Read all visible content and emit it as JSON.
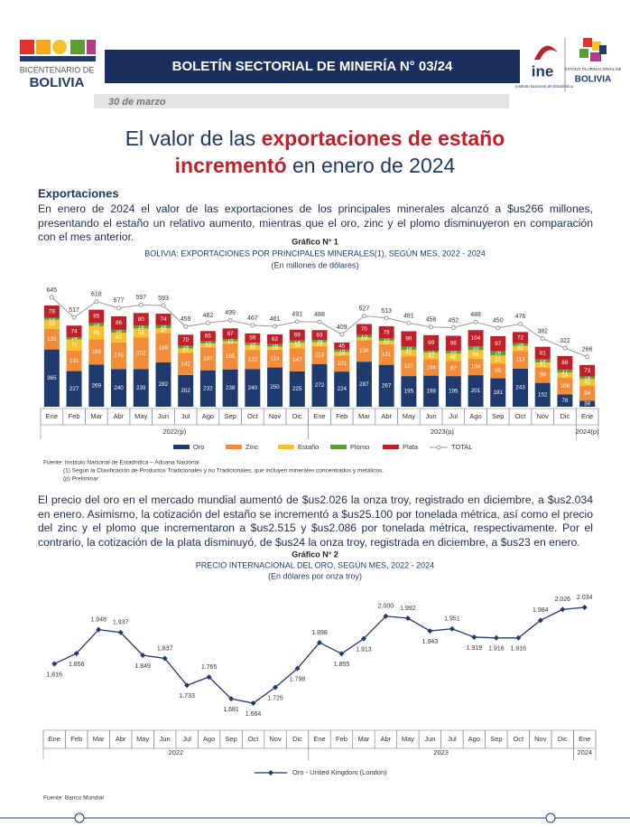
{
  "header": {
    "logo_left_top": "BICENTENARIO DE",
    "logo_left_bottom": "BOLIVIA",
    "title": "BOLETÍN SECTORIAL DE MINERÍA N° 03/24",
    "ine": "ine",
    "ine_caption": "Instituto Nacional de Estadística",
    "logo_right_top": "ESTADO PLURINACIONAL DE",
    "logo_right_bottom": "BOLIVIA",
    "date": "30 de marzo"
  },
  "headline": {
    "line1_plain": "El valor de las ",
    "line1_bold": "exportaciones de estaño",
    "line2_bold": "incrementó",
    "line2_plain": " en enero de 2024"
  },
  "section": "Exportaciones",
  "paragraphs": [
    "En enero de 2024 el valor de las exportaciones de los principales minerales alcanzó a $us266 millones, presentando el estaño un relativo aumento, mientras que el oro, zinc y el plomo disminuyeron en comparación con el mes anterior.",
    "El precio del oro en el mercado mundial aumentó de $us2.026 la onza troy, registrado en diciembre, a $us2.034 en enero. Asimismo, la cotización del estaño se incrementó a $us25.100 por tonelada métrica, así como el precio del zinc y el plomo que incrementaron a $us2.515 y $us2.086 por tonelada métrica, respectivamente. Por el contrario, la cotización de la plata disminuyó, de $us24 la onza troy, registrada en diciembre, a $us23 en enero."
  ],
  "chart_data": [
    {
      "type": "stacked_bar",
      "label": "Gráfico N° 1",
      "title": "BOLIVIA: EXPORTACIONES POR PRINCIPALES MINERALES(1), SEGÚN MES, 2022 - 2024",
      "subtitle": "(En millones de dólares)",
      "category_groups": [
        {
          "label": "2022(p)",
          "categories": [
            "Ene",
            "Feb",
            "Mar",
            "Abr",
            "May",
            "Jun",
            "Jul",
            "Ago",
            "Sep",
            "Oct",
            "Nov",
            "Dic"
          ]
        },
        {
          "label": "2023(p)",
          "categories": [
            "Ene",
            "Feb",
            "Mar",
            "Abr",
            "May",
            "Jun",
            "Jul",
            "Ago",
            "Sep",
            "Oct",
            "Nov",
            "Dic"
          ]
        },
        {
          "label": "2024(p)",
          "categories": [
            "Ene"
          ]
        }
      ],
      "series": [
        {
          "name": "Oro",
          "color": "#1f3a6e",
          "values": [
            365,
            227,
            269,
            240,
            239,
            282,
            202,
            232,
            238,
            240,
            250,
            225,
            272,
            224,
            287,
            267,
            195,
            198,
            195,
            201,
            181,
            243,
            152,
            78,
            38
          ]
        },
        {
          "name": "Zinc",
          "color": "#f28c38",
          "values": [
            131,
            131,
            160,
            170,
            202,
            189,
            142,
            147,
            165,
            122,
            114,
            147,
            113,
            101,
            136,
            131,
            127,
            104,
            97,
            104,
            95,
            113,
            99,
            106,
            94
          ]
        },
        {
          "name": "Estaño",
          "color": "#f6c22b",
          "values": [
            58,
            71,
            85,
            62,
            58,
            30,
            27,
            23,
            14,
            30,
            19,
            36,
            26,
            24,
            19,
            22,
            41,
            42,
            48,
            56,
            51,
            32,
            31,
            34,
            45
          ]
        },
        {
          "name": "Plomo",
          "color": "#5a9e2f",
          "values": [
            13,
            14,
            19,
            18,
            18,
            18,
            18,
            15,
            15,
            16,
            16,
            14,
            14,
            15,
            15,
            15,
            19,
            13,
            16,
            23,
            26,
            16,
            19,
            17,
            16
          ]
        },
        {
          "name": "Plata",
          "color": "#c0202a",
          "values": [
            78,
            74,
            85,
            86,
            80,
            74,
            70,
            65,
            67,
            59,
            62,
            69,
            63,
            45,
            70,
            78,
            99,
            99,
            96,
            104,
            97,
            72,
            81,
            88,
            73
          ]
        }
      ],
      "total": {
        "name": "TOTAL",
        "color": "#9a9a9a",
        "values": [
          645,
          517,
          618,
          577,
          597,
          593,
          459,
          482,
          499,
          467,
          461,
          491,
          488,
          409,
          527,
          513,
          481,
          456,
          452,
          488,
          450,
          476,
          382,
          322,
          266
        ]
      },
      "notes": [
        "Fuente: Instituto Nacional de Estadística – Aduana Nacional",
        "(1) Según la Clasificación de Productos Tradicionales y no Tradicionales, que incluyen minerales concentrados y metálicos.",
        "(p) Preliminar"
      ]
    },
    {
      "type": "line",
      "label": "Gráfico N° 2",
      "title": "PRECIO INTERNACIONAL DEL ORO, SEGÚN MES, 2022 - 2024",
      "subtitle": "(En dólares por onza troy)",
      "category_groups": [
        {
          "label": "2022",
          "categories": [
            "Ene",
            "Feb",
            "Mar",
            "Abr",
            "May",
            "Jun",
            "Jul",
            "Ago",
            "Sep",
            "Oct",
            "Nov",
            "Dic"
          ]
        },
        {
          "label": "2023",
          "categories": [
            "Ene",
            "Feb",
            "Mar",
            "Abr",
            "May",
            "Jun",
            "Jul",
            "Ago",
            "Sep",
            "Oct",
            "Nov",
            "Dic"
          ]
        },
        {
          "label": "2024",
          "categories": [
            "Ene"
          ]
        }
      ],
      "series": [
        {
          "name": "Oro - United Kingdom (London)",
          "color": "#1f3a6e",
          "values": [
            1816,
            1856,
            1948,
            1937,
            1849,
            1837,
            1733,
            1765,
            1681,
            1664,
            1725,
            1798,
            1898,
            1855,
            1913,
            2000,
            1992,
            1943,
            1951,
            1919,
            1916,
            1916,
            1984,
            2026,
            2034
          ],
          "value_labels": [
            "1.816",
            "1.856",
            "1.948",
            "1.937",
            "1.849",
            "1.837",
            "1.733",
            "1.765",
            "1.681",
            "1.664",
            "1.725",
            "1.798",
            "1.898",
            "1.855",
            "1.913",
            "2.000",
            "1.992",
            "1.943",
            "1.951",
            "1.919",
            "1.916",
            "1.916",
            "1.984",
            "2.026",
            "2.034"
          ]
        }
      ],
      "notes": [
        "Fuente: Banco Mundial"
      ]
    }
  ]
}
